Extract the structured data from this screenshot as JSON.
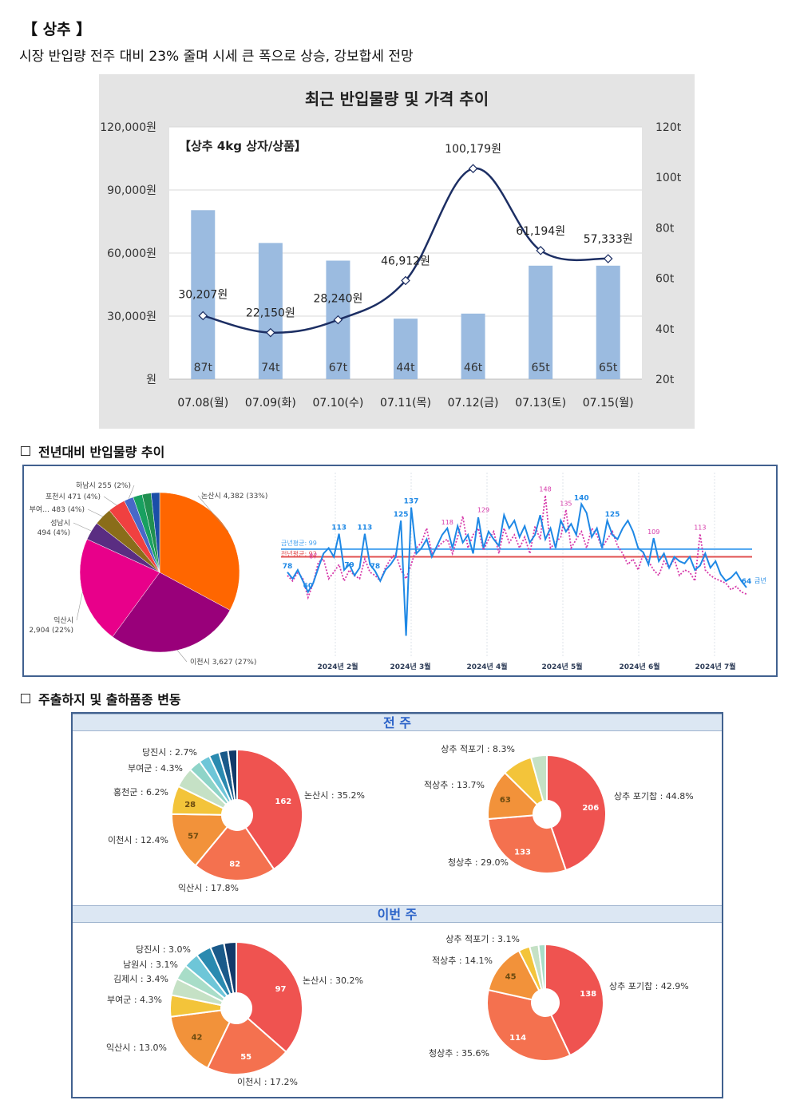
{
  "header": {
    "title": "【 상추 】",
    "subtitle": "시장 반입량 전주 대비 23% 줄며 시세 큰 폭으로 상승, 강보합세 전망"
  },
  "chart_data": [
    {
      "type": "bar",
      "title": "최근 반입물량 및 가격 추이",
      "subtitle": "【상추 4kg 상자/상품】",
      "categories": [
        "07.08(월)",
        "07.09(화)",
        "07.10(수)",
        "07.11(목)",
        "07.12(금)",
        "07.13(토)",
        "07.15(월)"
      ],
      "series": [
        {
          "type": "bar",
          "axis": "right",
          "values": [
            87,
            74,
            67,
            44,
            46,
            65,
            65
          ],
          "labels": [
            "87t",
            "74t",
            "67t",
            "44t",
            "46t",
            "65t",
            "65t"
          ]
        },
        {
          "type": "line",
          "axis": "left",
          "values": [
            30207,
            22150,
            28240,
            46912,
            100179,
            61194,
            57333
          ],
          "labels": [
            "30,207원",
            "22,150원",
            "28,240원",
            "46,912원",
            "100,179원",
            "61,194원",
            "57,333원"
          ]
        }
      ],
      "ylim_left": [
        0,
        120000
      ],
      "ylim_right": [
        20,
        120
      ],
      "left_ticks": [
        "원",
        "30,000원",
        "60,000원",
        "90,000원",
        "120,000원"
      ],
      "right_ticks": [
        "20t",
        "40t",
        "60t",
        "80t",
        "100t",
        "120t"
      ],
      "grid": true,
      "colors": {
        "bar": "#9bbbe0",
        "line": "#1c2e63"
      }
    },
    {
      "type": "pie",
      "title": "",
      "slices": [
        {
          "label": "논산시 4,382 (33%)",
          "value": 4382,
          "color": "#ff6600"
        },
        {
          "label": "이천시 3,627 (27%)",
          "value": 3627,
          "color": "#99007a"
        },
        {
          "label": "익산시 2,904 (22%)",
          "value": 2904,
          "color": "#e8008a"
        },
        {
          "label": "성남시 494 (4%)",
          "value": 494,
          "color": "#5a2d82"
        },
        {
          "label": "부여... 483 (4%)",
          "value": 483,
          "color": "#8a6d1a"
        },
        {
          "label": "포천시 471 (4%)",
          "value": 471,
          "color": "#f04040"
        },
        {
          "label": "하남시 255 (2%)",
          "value": 255,
          "color": "#4868c8"
        },
        {
          "label": "",
          "value": 250,
          "color": "#18a060"
        },
        {
          "label": "",
          "value": 240,
          "color": "#209050"
        },
        {
          "label": "",
          "value": 230,
          "color": "#1a4ea8"
        }
      ]
    },
    {
      "type": "line",
      "x_ticks": [
        "2024년 2월",
        "2024년 3월",
        "2024년 4월",
        "2024년 5월",
        "2024년 6월",
        "2024년 7월"
      ],
      "series": [
        {
          "name": "금년",
          "color": "#1e88e5",
          "values": [
            78,
            72,
            80,
            70,
            60,
            68,
            82,
            95,
            100,
            92,
            113,
            80,
            85,
            75,
            82,
            113,
            85,
            79,
            70,
            80,
            85,
            92,
            125,
            20,
            137,
            95,
            100,
            108,
            92,
            102,
            112,
            118,
            100,
            120,
            105,
            112,
            95,
            128,
            100,
            115,
            108,
            102,
            130,
            118,
            125,
            110,
            120,
            105,
            112,
            130,
            108,
            118,
            100,
            125,
            115,
            122,
            112,
            140,
            132,
            110,
            118,
            100,
            125,
            112,
            108,
            118,
            125,
            115,
            100,
            96,
            85,
            109,
            88,
            95,
            82,
            92,
            88,
            86,
            92,
            80,
            84,
            95,
            82,
            88,
            76,
            70,
            73,
            78,
            70,
            64
          ]
        },
        {
          "name": "전년",
          "color": "#d63aaa",
          "values": [
            75,
            70,
            78,
            72,
            55,
            68,
            87,
            90,
            72,
            78,
            85,
            70,
            80,
            75,
            72,
            90,
            78,
            75,
            70,
            82,
            90,
            95,
            80,
            72,
            85,
            100,
            105,
            118,
            95,
            100,
            105,
            108,
            95,
            110,
            129,
            100,
            112,
            118,
            98,
            108,
            115,
            95,
            118,
            105,
            112,
            100,
            110,
            95,
            120,
            108,
            148,
            100,
            105,
            110,
            135,
            100,
            108,
            115,
            100,
            118,
            112,
            100,
            108,
            115,
            102,
            95,
            85,
            90,
            80,
            95,
            88,
            80,
            75,
            88,
            82,
            90,
            75,
            80,
            78,
            70,
            113,
            80,
            75,
            72,
            70,
            68,
            62,
            65,
            60,
            58
          ]
        }
      ],
      "annotations": [
        "137",
        "113",
        "113",
        "125",
        "78",
        "60",
        "78",
        "79",
        "118",
        "129",
        "140",
        "148",
        "125",
        "135",
        "109",
        "113",
        "64",
        "87"
      ],
      "reference_lines": [
        {
          "label": "금년평균: 99",
          "color": "#4aa3f0"
        },
        {
          "label": "전년평균: 92",
          "color": "#e05050"
        }
      ],
      "end_label": "금년",
      "ylim": [
        0,
        160
      ]
    },
    {
      "type": "pie",
      "group": "전 주",
      "title": "",
      "slices": [
        {
          "label": "논산시 : 35.2%",
          "value": 162,
          "color": "#ef5350",
          "inner": "162"
        },
        {
          "label": "익산시 : 17.8%",
          "value": 82,
          "color": "#f4714f",
          "inner": "82"
        },
        {
          "label": "이천시 : 12.4%",
          "value": 57,
          "color": "#f2923a",
          "inner": "57"
        },
        {
          "label": "홍천군 : 6.2%",
          "value": 28,
          "color": "#f3c43a",
          "inner": "28"
        },
        {
          "label": "부여군 : 4.3%",
          "value": 20,
          "color": "#c5e1c5",
          "inner": ""
        },
        {
          "label": "당진시 : 2.7%",
          "value": 12,
          "color": "#8ed4c8",
          "inner": ""
        },
        {
          "label": "",
          "value": 11,
          "color": "#6ec6d8",
          "inner": ""
        },
        {
          "label": "",
          "value": 10,
          "color": "#2a8ab0",
          "inner": ""
        },
        {
          "label": "",
          "value": 9,
          "color": "#1a5a8a",
          "inner": ""
        },
        {
          "label": "",
          "value": 9,
          "color": "#123a6a",
          "inner": ""
        }
      ]
    },
    {
      "type": "pie",
      "group": "전 주",
      "title": "",
      "slices": [
        {
          "label": "상추 포기찹 : 44.8%",
          "value": 206,
          "color": "#ef5350",
          "inner": "206"
        },
        {
          "label": "청상추 : 29.0%",
          "value": 133,
          "color": "#f4714f",
          "inner": "133"
        },
        {
          "label": "적상추 : 13.7%",
          "value": 63,
          "color": "#f2923a",
          "inner": "63"
        },
        {
          "label": "상추 적포기 : 8.3%",
          "value": 38,
          "color": "#f3c43a",
          "inner": ""
        },
        {
          "label": "",
          "value": 20,
          "color": "#c5e1c5",
          "inner": ""
        }
      ]
    },
    {
      "type": "pie",
      "group": "이번 주",
      "title": "",
      "slices": [
        {
          "label": "논산시 : 30.2%",
          "value": 97,
          "color": "#ef5350",
          "inner": "97"
        },
        {
          "label": "이천시 : 17.2%",
          "value": 55,
          "color": "#f4714f",
          "inner": "55"
        },
        {
          "label": "익산시 : 13.0%",
          "value": 42,
          "color": "#f2923a",
          "inner": "42"
        },
        {
          "label": "부여군 : 4.3%",
          "value": 14,
          "color": "#f3c43a",
          "inner": ""
        },
        {
          "label": "김제시 : 3.4%",
          "value": 11,
          "color": "#c5e1c5",
          "inner": ""
        },
        {
          "label": "남원시 : 3.1%",
          "value": 10,
          "color": "#a8ddc8",
          "inner": ""
        },
        {
          "label": "당진시 : 3.0%",
          "value": 10,
          "color": "#6ec6d8",
          "inner": ""
        },
        {
          "label": "",
          "value": 10,
          "color": "#2a8ab0",
          "inner": ""
        },
        {
          "label": "",
          "value": 9,
          "color": "#1a5a8a",
          "inner": ""
        },
        {
          "label": "",
          "value": 8,
          "color": "#123a6a",
          "inner": ""
        }
      ]
    },
    {
      "type": "pie",
      "group": "이번 주",
      "title": "",
      "slices": [
        {
          "label": "상추 포기찹 : 42.9%",
          "value": 138,
          "color": "#ef5350",
          "inner": "138"
        },
        {
          "label": "청상추 : 35.6%",
          "value": 114,
          "color": "#f4714f",
          "inner": "114"
        },
        {
          "label": "적상추 : 14.1%",
          "value": 45,
          "color": "#f2923a",
          "inner": "45"
        },
        {
          "label": "상추 적포기 : 3.1%",
          "value": 10,
          "color": "#f3c43a",
          "inner": ""
        },
        {
          "label": "",
          "value": 8,
          "color": "#c5e1c5",
          "inner": ""
        },
        {
          "label": "",
          "value": 6,
          "color": "#a8ddc8",
          "inner": ""
        }
      ]
    }
  ],
  "sections": {
    "section2_title": "전년대비 반입물량 추이",
    "section3_title": "주출하지 및 출하품종 변동",
    "band_prev": "전 주",
    "band_this": "이번 주"
  }
}
